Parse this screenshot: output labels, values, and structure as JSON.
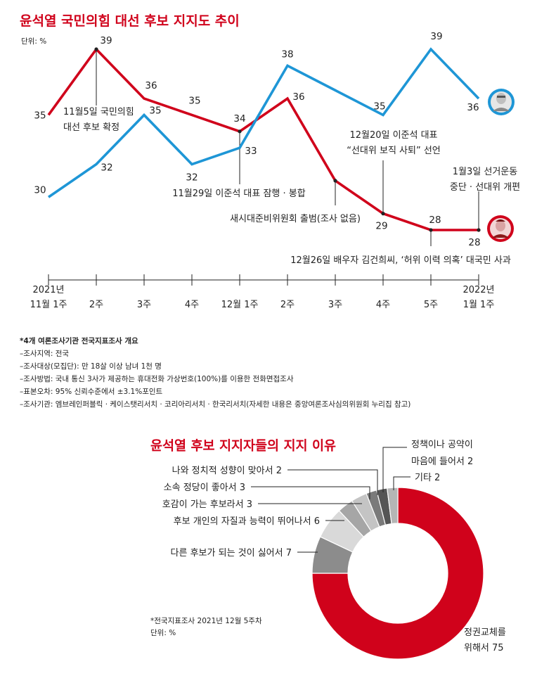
{
  "chart_data": [
    {
      "type": "line",
      "title": "윤석열 국민의힘 대선 후보 지지도 추이",
      "unit_label": "단위: %",
      "categories": [
        {
          "top": "2021년",
          "bottom": "11월 1주"
        },
        {
          "top": "",
          "bottom": "2주"
        },
        {
          "top": "",
          "bottom": "3주"
        },
        {
          "top": "",
          "bottom": "4주"
        },
        {
          "top": "",
          "bottom": "12월 1주"
        },
        {
          "top": "",
          "bottom": "2주"
        },
        {
          "top": "",
          "bottom": "3주"
        },
        {
          "top": "",
          "bottom": "4주"
        },
        {
          "top": "",
          "bottom": "5주"
        },
        {
          "top": "2022년",
          "bottom": "1월 1주"
        }
      ],
      "series": [
        {
          "key": "red",
          "color": "#d0021b",
          "values": [
            35,
            39,
            36,
            35,
            34,
            36,
            31,
            29,
            28,
            28
          ]
        },
        {
          "key": "blue",
          "color": "#1e96d6",
          "values": [
            30,
            32,
            35,
            32,
            33,
            38,
            36.5,
            35,
            39,
            36
          ]
        }
      ],
      "value_labels": [
        {
          "series": "red",
          "index": 0,
          "text": "35"
        },
        {
          "series": "red",
          "index": 1,
          "text": "39"
        },
        {
          "series": "red",
          "index": 2,
          "text": "36"
        },
        {
          "series": "red",
          "index": 3,
          "text": "35"
        },
        {
          "series": "red",
          "index": 4,
          "text": "34"
        },
        {
          "series": "red",
          "index": 5,
          "text": "36"
        },
        {
          "series": "red",
          "index": 7,
          "text": "29"
        },
        {
          "series": "red",
          "index": 8,
          "text": "28"
        },
        {
          "series": "red",
          "index": 9,
          "text": "28"
        },
        {
          "series": "blue",
          "index": 0,
          "text": "30"
        },
        {
          "series": "blue",
          "index": 1,
          "text": "32"
        },
        {
          "series": "blue",
          "index": 2,
          "text": "35"
        },
        {
          "series": "blue",
          "index": 3,
          "text": "32"
        },
        {
          "series": "blue",
          "index": 4,
          "text": "33"
        },
        {
          "series": "blue",
          "index": 5,
          "text": "38"
        },
        {
          "series": "blue",
          "index": 7,
          "text": "35"
        },
        {
          "series": "blue",
          "index": 8,
          "text": "39"
        },
        {
          "series": "blue",
          "index": 9,
          "text": "36"
        }
      ],
      "annotations": [
        {
          "index": 1,
          "lines": [
            "11월5일 국민의힘",
            "대선 후보 확정"
          ]
        },
        {
          "index": 4,
          "lines": [
            "11월29일 이준석 대표 잠행 · 봉합"
          ]
        },
        {
          "index": 6,
          "lines": [
            "새시대준비위원회 출범(조사 없음)"
          ]
        },
        {
          "index": 7,
          "lines": [
            "12월20일 이준석 대표",
            "“선대위 보직 사퇴” 선언"
          ]
        },
        {
          "index": 8,
          "lines": [
            "12월26일 배우자 김건희씨, ‘허위 이력 의혹’ 대국민 사과"
          ]
        },
        {
          "index": 9,
          "lines": [
            "1월3일 선거운동",
            "중단 · 선대위 개편"
          ]
        }
      ],
      "notes": {
        "heading": "*4개 여론조사기관 전국지표조사 개요",
        "items": [
          "–조사지역: 전국",
          "–조사대상(모집단): 만 18살 이상 남녀 1천 명",
          "–조사방법: 국내 통신 3사가 제공하는 휴대전화 가상번호(100%)를 이용한 전화면접조사",
          "–표본오차: 95% 신뢰수준에서 ±3.1%포인트",
          "–조사기관: 엠브레인퍼블릭 · 케이스탯리서치 · 코리아리서치 · 한국리서치(자세한 내용은 중앙여론조사심의위원회 누리집 참고)"
        ]
      }
    },
    {
      "type": "pie",
      "title": "윤석열 후보 지지자들의 지지 이유",
      "slices": [
        {
          "lines": [
            "정권교체를",
            "위해서 75"
          ],
          "value": 75,
          "color": "#d0021b"
        },
        {
          "lines": [
            "다른 후보가 되는 것이 싫어서 7"
          ],
          "value": 7,
          "color": "#8c8c8c"
        },
        {
          "lines": [
            "후보 개인의 자질과 능력이 뛰어나서 6"
          ],
          "value": 6,
          "color": "#d9d9d9"
        },
        {
          "lines": [
            "호감이 가는 후보라서 3"
          ],
          "value": 3,
          "color": "#a6a6a6"
        },
        {
          "lines": [
            "소속 정당이 좋아서 3"
          ],
          "value": 3,
          "color": "#c4c4c4"
        },
        {
          "lines": [
            "나와 정치적 성향이 맞아서 2"
          ],
          "value": 2,
          "color": "#7a7a7a"
        },
        {
          "lines": [
            "정책이나 공약이",
            "마음에 들어서 2"
          ],
          "value": 2,
          "color": "#555555"
        },
        {
          "lines": [
            "기타 2"
          ],
          "value": 2,
          "color": "#b5b5b5"
        }
      ],
      "footnote": [
        "*전국지표조사 2021년 12월 5주차",
        "단위: %"
      ]
    }
  ]
}
